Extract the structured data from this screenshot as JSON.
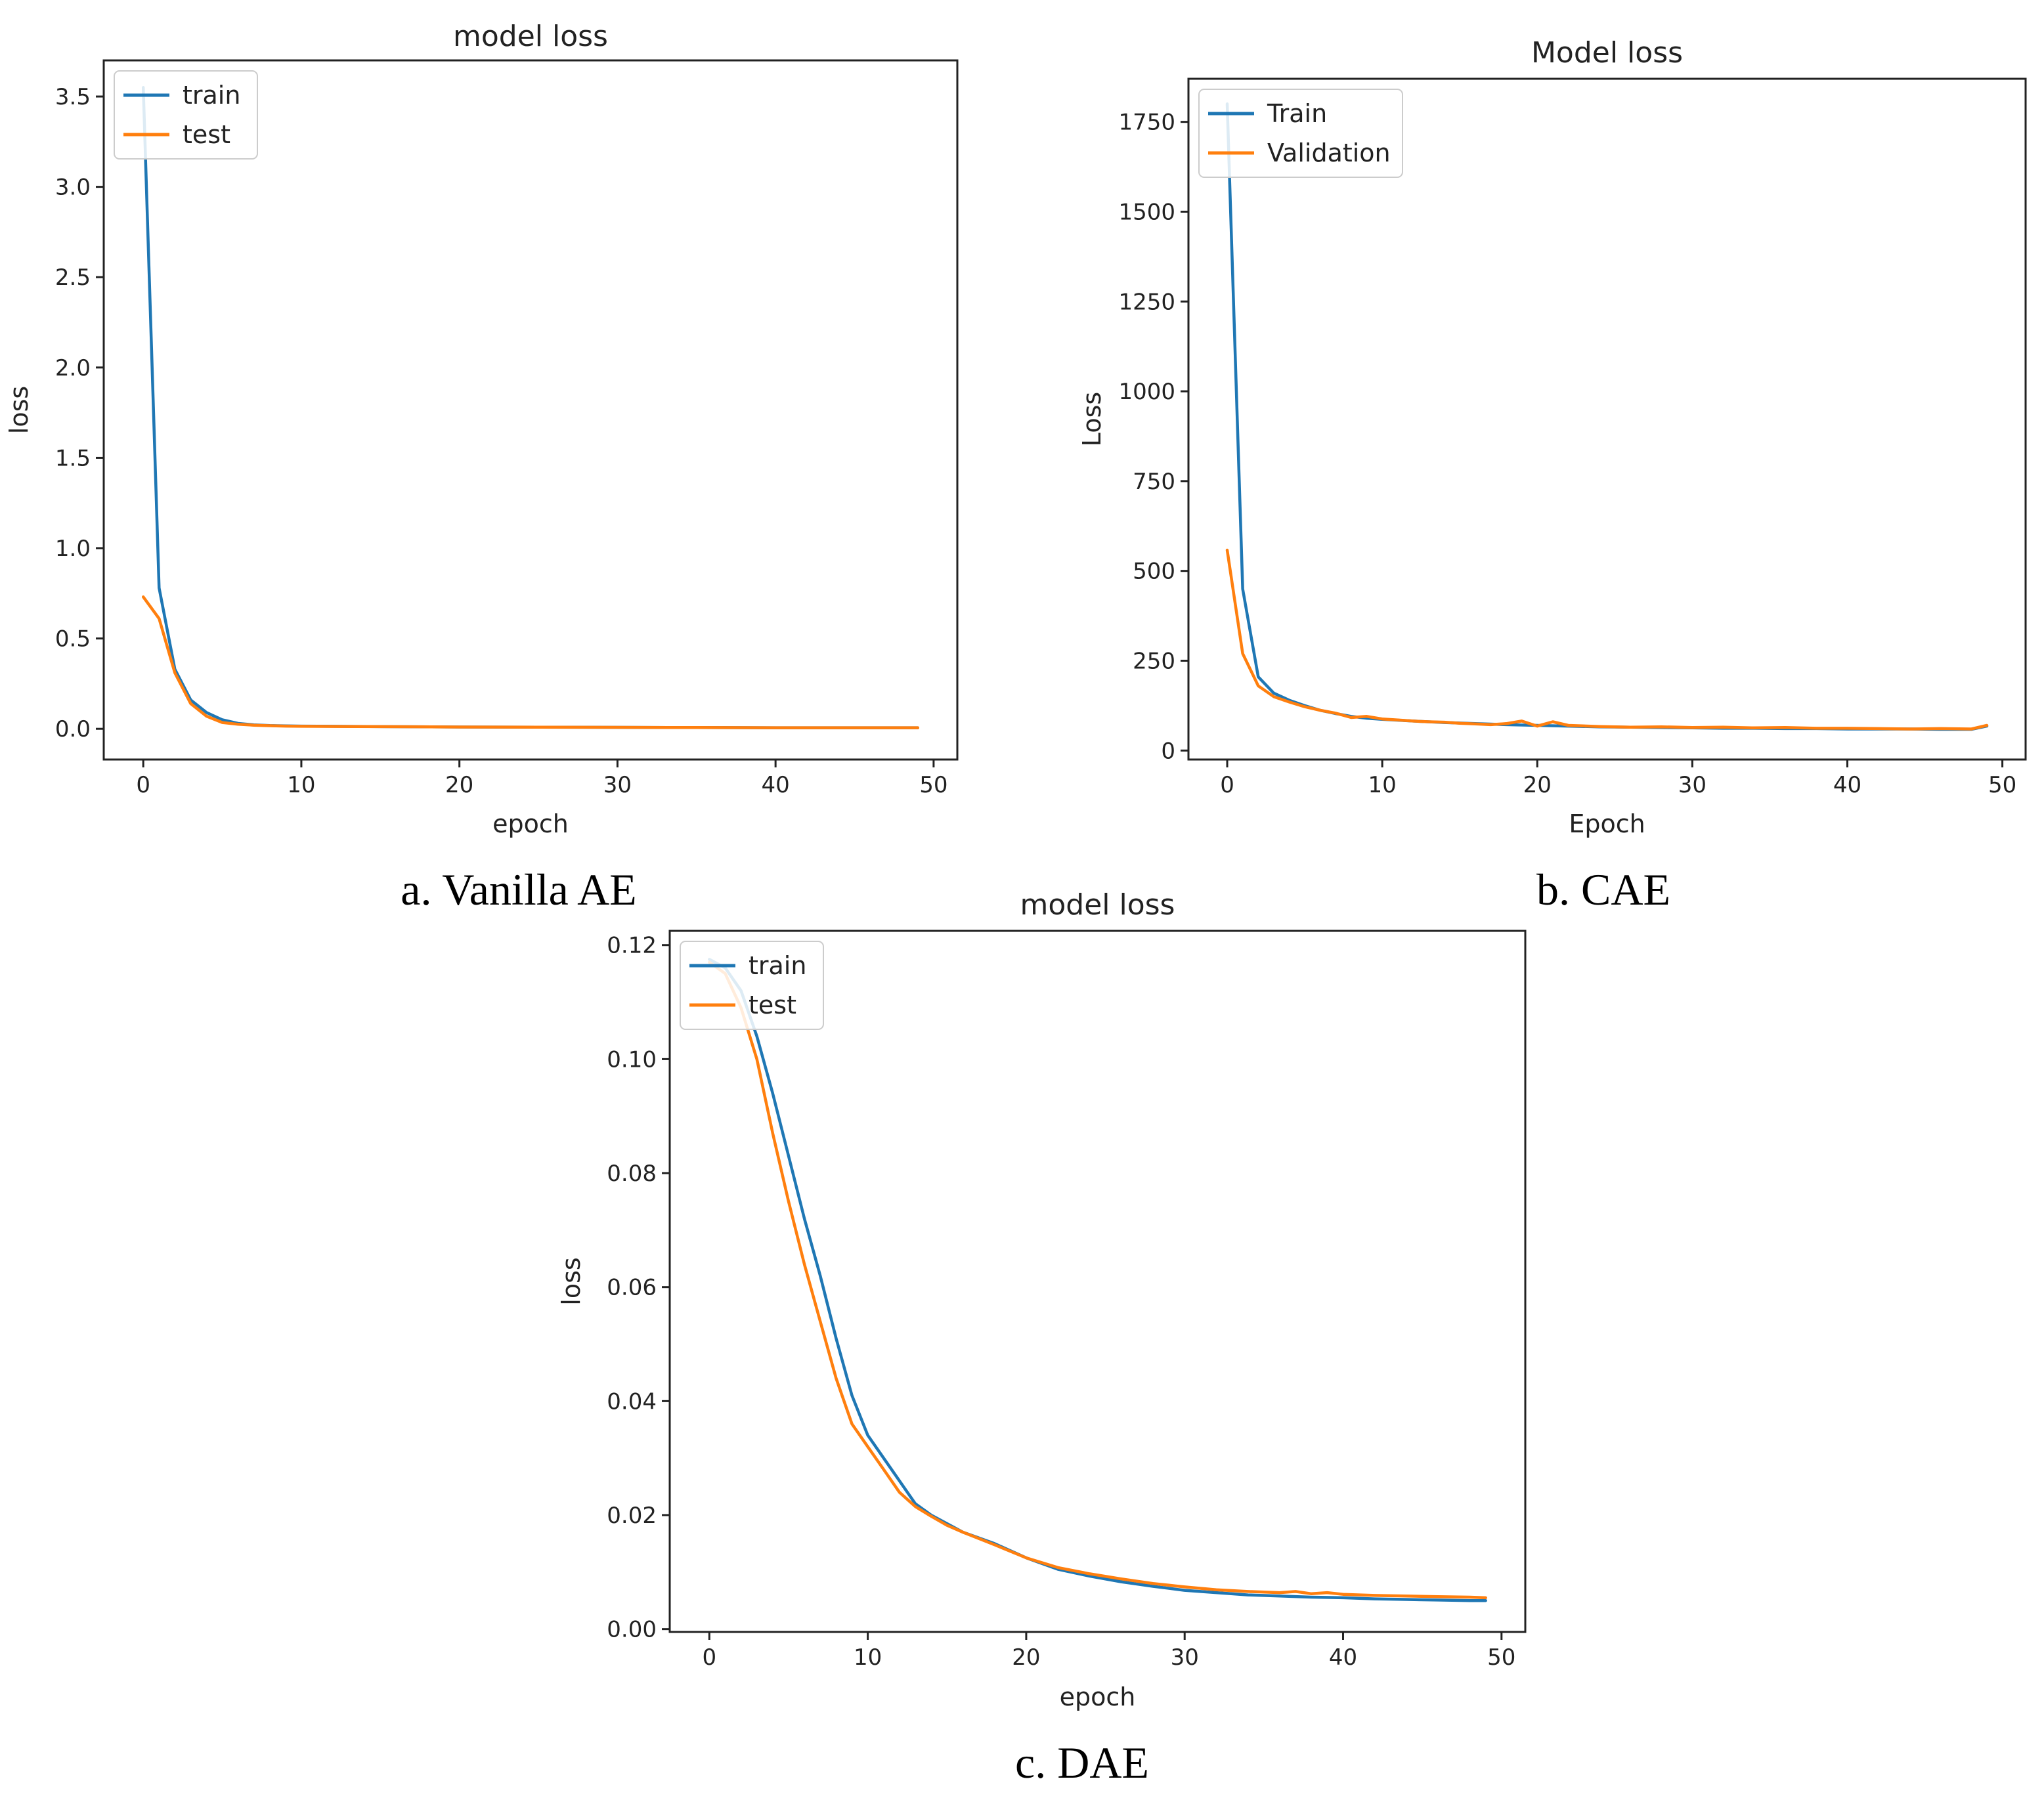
{
  "chart_data": [
    {
      "id": "vanilla",
      "type": "line",
      "title": "model loss",
      "xlabel": "epoch",
      "ylabel": "loss",
      "caption": "a. Vanilla AE",
      "xlim": [
        -2.5,
        51.5
      ],
      "ylim": [
        -0.17,
        3.7
      ],
      "xticks": [
        0,
        10,
        20,
        30,
        40,
        50
      ],
      "xtick_labels": [
        "0",
        "10",
        "20",
        "30",
        "40",
        "50"
      ],
      "yticks": [
        0.0,
        0.5,
        1.0,
        1.5,
        2.0,
        2.5,
        3.0,
        3.5
      ],
      "ytick_labels": [
        "0.0",
        "0.5",
        "1.0",
        "1.5",
        "2.0",
        "2.5",
        "3.0",
        "3.5"
      ],
      "legend_position": "upper-left",
      "grid": false,
      "series": [
        {
          "name": "train",
          "color": "#1f77b4",
          "x": [
            0,
            1,
            2,
            3,
            4,
            5,
            6,
            7,
            8,
            9,
            10,
            15,
            20,
            25,
            30,
            35,
            40,
            45,
            49
          ],
          "y": [
            3.55,
            0.78,
            0.33,
            0.16,
            0.09,
            0.05,
            0.03,
            0.022,
            0.018,
            0.016,
            0.015,
            0.012,
            0.01,
            0.009,
            0.008,
            0.007,
            0.006,
            0.006,
            0.006
          ]
        },
        {
          "name": "test",
          "color": "#ff7f0e",
          "x": [
            0,
            1,
            2,
            3,
            4,
            5,
            6,
            7,
            8,
            9,
            10,
            15,
            20,
            25,
            30,
            35,
            40,
            45,
            49
          ],
          "y": [
            0.73,
            0.61,
            0.31,
            0.14,
            0.07,
            0.035,
            0.025,
            0.02,
            0.017,
            0.015,
            0.014,
            0.012,
            0.01,
            0.009,
            0.008,
            0.007,
            0.006,
            0.006,
            0.006
          ]
        }
      ]
    },
    {
      "id": "cae",
      "type": "line",
      "title": "Model loss",
      "xlabel": "Epoch",
      "ylabel": "Loss",
      "caption": "b. CAE",
      "xlim": [
        -2.5,
        51.5
      ],
      "ylim": [
        -25,
        1870
      ],
      "xticks": [
        0,
        10,
        20,
        30,
        40,
        50
      ],
      "xtick_labels": [
        "0",
        "10",
        "20",
        "30",
        "40",
        "50"
      ],
      "yticks": [
        0,
        250,
        500,
        750,
        1000,
        1250,
        1500,
        1750
      ],
      "ytick_labels": [
        "0",
        "250",
        "500",
        "750",
        "1000",
        "1250",
        "1500",
        "1750"
      ],
      "legend_position": "upper-left",
      "grid": false,
      "series": [
        {
          "name": "Train",
          "color": "#1f77b4",
          "x": [
            0,
            1,
            2,
            3,
            4,
            5,
            6,
            7,
            8,
            9,
            10,
            12,
            14,
            16,
            18,
            20,
            22,
            24,
            26,
            28,
            30,
            32,
            34,
            36,
            38,
            40,
            42,
            44,
            46,
            48,
            49
          ],
          "y": [
            1800,
            450,
            205,
            160,
            140,
            125,
            112,
            103,
            95,
            90,
            87,
            82,
            78,
            75,
            72,
            70,
            68,
            66,
            65,
            64,
            63,
            62,
            62,
            61,
            61,
            60,
            60,
            60,
            59,
            59,
            68
          ]
        },
        {
          "name": "Validation",
          "color": "#ff7f0e",
          "x": [
            0,
            1,
            2,
            3,
            4,
            5,
            6,
            7,
            8,
            9,
            10,
            11,
            12,
            13,
            14,
            15,
            16,
            17,
            18,
            19,
            20,
            21,
            22,
            24,
            26,
            28,
            30,
            32,
            34,
            36,
            38,
            40,
            42,
            44,
            46,
            48,
            49
          ],
          "y": [
            558,
            270,
            180,
            150,
            135,
            122,
            112,
            104,
            92,
            95,
            88,
            85,
            82,
            80,
            79,
            76,
            74,
            72,
            75,
            82,
            68,
            80,
            70,
            67,
            65,
            66,
            64,
            65,
            63,
            64,
            62,
            62,
            61,
            60,
            61,
            60,
            70
          ]
        }
      ]
    },
    {
      "id": "dae",
      "type": "line",
      "title": "model loss",
      "xlabel": "epoch",
      "ylabel": "loss",
      "caption": "c. DAE",
      "xlim": [
        -2.5,
        51.5
      ],
      "ylim": [
        -0.0005,
        0.1225
      ],
      "xticks": [
        0,
        10,
        20,
        30,
        40,
        50
      ],
      "xtick_labels": [
        "0",
        "10",
        "20",
        "30",
        "40",
        "50"
      ],
      "yticks": [
        0.0,
        0.02,
        0.04,
        0.06,
        0.08,
        0.1,
        0.12
      ],
      "ytick_labels": [
        "0.00",
        "0.02",
        "0.04",
        "0.06",
        "0.08",
        "0.10",
        "0.12"
      ],
      "legend_position": "upper-left",
      "grid": false,
      "series": [
        {
          "name": "train",
          "color": "#1f77b4",
          "x": [
            0,
            1,
            2,
            3,
            4,
            5,
            6,
            7,
            8,
            9,
            10,
            11,
            12,
            13,
            14,
            15,
            16,
            18,
            20,
            22,
            24,
            26,
            28,
            30,
            32,
            34,
            36,
            38,
            40,
            42,
            44,
            46,
            48,
            49
          ],
          "y": [
            0.1175,
            0.116,
            0.112,
            0.104,
            0.094,
            0.083,
            0.072,
            0.062,
            0.051,
            0.041,
            0.034,
            0.03,
            0.026,
            0.022,
            0.02,
            0.0185,
            0.017,
            0.015,
            0.0125,
            0.0105,
            0.0093,
            0.0083,
            0.0075,
            0.0068,
            0.0064,
            0.006,
            0.0058,
            0.0056,
            0.0055,
            0.0053,
            0.0052,
            0.0051,
            0.005,
            0.005
          ]
        },
        {
          "name": "test",
          "color": "#ff7f0e",
          "x": [
            0,
            1,
            2,
            3,
            4,
            5,
            6,
            7,
            8,
            9,
            10,
            11,
            12,
            13,
            14,
            15,
            16,
            18,
            20,
            22,
            24,
            26,
            28,
            30,
            32,
            34,
            36,
            37,
            38,
            39,
            40,
            42,
            44,
            46,
            48,
            49
          ],
          "y": [
            0.117,
            0.115,
            0.109,
            0.1,
            0.087,
            0.075,
            0.064,
            0.054,
            0.044,
            0.036,
            0.032,
            0.028,
            0.024,
            0.0215,
            0.0198,
            0.0182,
            0.017,
            0.0148,
            0.0125,
            0.0108,
            0.0097,
            0.0088,
            0.008,
            0.0074,
            0.0069,
            0.0066,
            0.0064,
            0.0066,
            0.0062,
            0.0064,
            0.0061,
            0.0059,
            0.0058,
            0.0057,
            0.0056,
            0.0055
          ]
        }
      ]
    }
  ]
}
